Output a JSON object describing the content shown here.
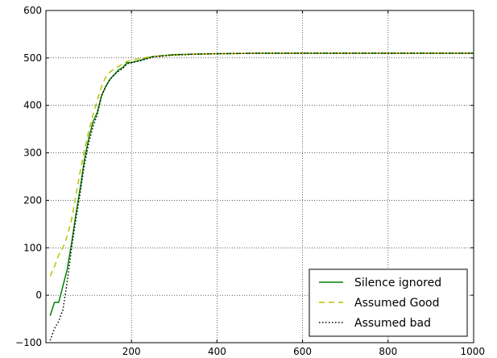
{
  "chart_data": {
    "type": "line",
    "title": "",
    "xlabel": "",
    "ylabel": "",
    "xlim": [
      0,
      1000
    ],
    "ylim": [
      -100,
      600
    ],
    "xticks": [
      200,
      400,
      600,
      800,
      1000
    ],
    "yticks": [
      -100,
      0,
      100,
      200,
      300,
      400,
      500,
      600
    ],
    "xtick_labels": [
      "200",
      "400",
      "600",
      "800",
      "1000"
    ],
    "ytick_labels": [
      "−100",
      "0",
      "100",
      "200",
      "300",
      "400",
      "500",
      "600"
    ],
    "grid": true,
    "legend_position": "lower-right",
    "series": [
      {
        "name": "Silence ignored",
        "color": "#008000",
        "style": "solid",
        "x": [
          10,
          20,
          30,
          40,
          50,
          60,
          70,
          80,
          90,
          100,
          110,
          120,
          130,
          140,
          150,
          160,
          170,
          180,
          190,
          200,
          220,
          250,
          300,
          350,
          400,
          500,
          600,
          700,
          800,
          900,
          1000
        ],
        "y": [
          -43,
          -15,
          -15,
          20,
          55,
          110,
          170,
          225,
          285,
          330,
          365,
          385,
          420,
          440,
          455,
          465,
          475,
          480,
          490,
          490,
          495,
          503,
          507,
          508,
          509,
          510,
          510,
          510,
          510,
          510,
          510
        ]
      },
      {
        "name": "Assumed Good",
        "color": "#bfbf00",
        "style": "dashed",
        "x": [
          10,
          20,
          30,
          40,
          50,
          60,
          70,
          80,
          90,
          100,
          110,
          120,
          130,
          140,
          150,
          160,
          170,
          180,
          190,
          200,
          220,
          250,
          300,
          350,
          400,
          500,
          600,
          700,
          800,
          900,
          1000
        ],
        "y": [
          40,
          60,
          85,
          100,
          125,
          160,
          210,
          260,
          305,
          345,
          380,
          410,
          440,
          460,
          470,
          478,
          482,
          488,
          493,
          495,
          499,
          503,
          506,
          508,
          509,
          510,
          510,
          510,
          510,
          510,
          510
        ]
      },
      {
        "name": "Assumed bad",
        "color": "#000000",
        "style": "dotted",
        "x": [
          10,
          20,
          30,
          40,
          50,
          60,
          70,
          80,
          90,
          100,
          110,
          120,
          130,
          140,
          150,
          160,
          170,
          180,
          190,
          200,
          220,
          250,
          300,
          350,
          400,
          500,
          600,
          700,
          800,
          900,
          1000
        ],
        "y": [
          -95,
          -70,
          -55,
          -30,
          30,
          100,
          160,
          215,
          275,
          320,
          355,
          380,
          420,
          440,
          455,
          465,
          472,
          478,
          488,
          490,
          494,
          502,
          506,
          508,
          509,
          510,
          510,
          510,
          510,
          510,
          510
        ]
      }
    ]
  }
}
